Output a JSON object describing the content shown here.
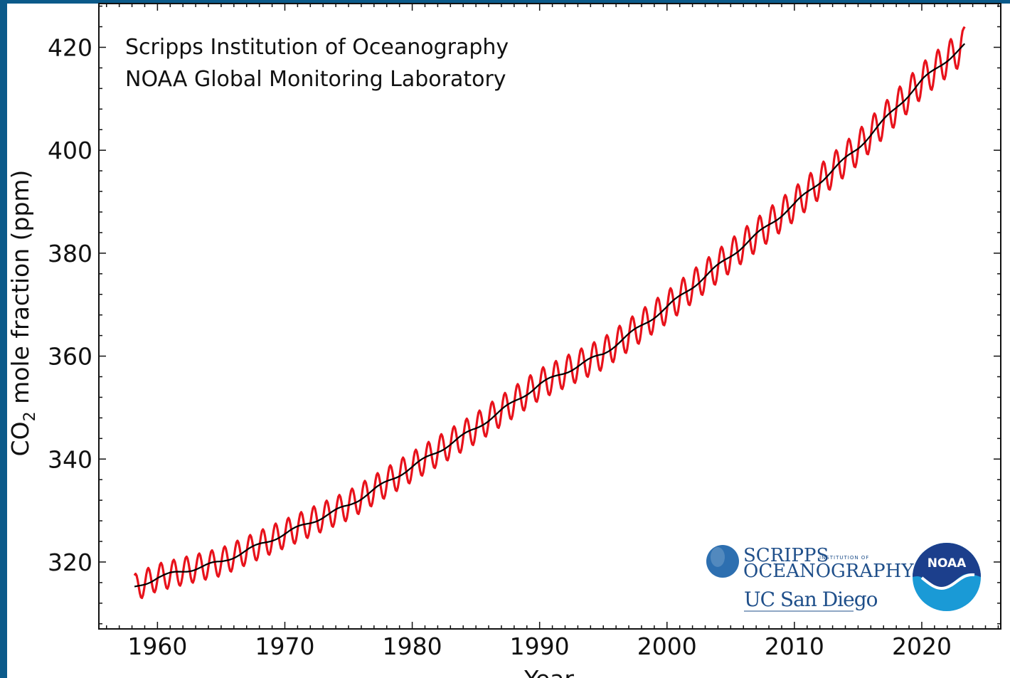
{
  "chart_data": {
    "type": "line",
    "xlabel": "Year",
    "ylabel": "CO",
    "ylabel_sub": "2",
    "ylabel_suffix": " mole fraction (ppm)",
    "xlim": [
      1955.4,
      2026.2
    ],
    "ylim": [
      307,
      428.5
    ],
    "xticks": [
      1960,
      1970,
      1980,
      1990,
      2000,
      2010,
      2020
    ],
    "yticks": [
      320,
      340,
      360,
      380,
      400,
      420
    ],
    "annotations": [
      "Scripps Institution of Oceanography",
      "NOAA Global Monitoring Laboratory"
    ],
    "grid": false,
    "series": [
      {
        "color": "#e8121b",
        "style": "monthly-with-seasonal-cycle",
        "start_year": 1958.2,
        "end_year": 2023.4,
        "seasonal_amplitude_ppm": 3.1,
        "end_value_ppm": 424
      },
      {
        "color": "#000000",
        "style": "deseasonalized-trend",
        "x": [
          1958.2,
          1960,
          1965,
          1970,
          1975,
          1980,
          1985,
          1990,
          1995,
          2000,
          2005,
          2010,
          2015,
          2020,
          2023.4
        ],
        "y": [
          315,
          317,
          320,
          325.5,
          331,
          338.5,
          346,
          354.5,
          360.5,
          369.5,
          379.5,
          389.5,
          400.5,
          413.5,
          420.5
        ]
      }
    ]
  },
  "logos": {
    "scripps_big": "SCRIPPS",
    "scripps_small": "INSTITUTION OF",
    "scripps_ocean": "OCEANOGRAPHY",
    "ucsd": "UC San Diego",
    "noaa": "NOAA",
    "globe_color": "#2d6fb0",
    "noaa_dark": "#1c3f8c",
    "noaa_light": "#1a9ad6"
  }
}
